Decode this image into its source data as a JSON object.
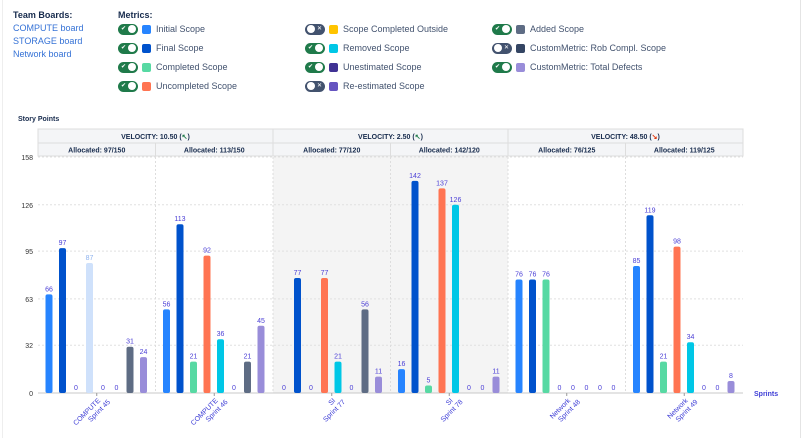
{
  "team_boards": {
    "title": "Team Boards:",
    "items": [
      "COMPUTE board",
      "STORAGE board",
      "Network board"
    ]
  },
  "metrics": {
    "title": "Metrics:",
    "items": [
      {
        "label": "Initial Scope",
        "on": true,
        "color": "#2684ff"
      },
      {
        "label": "Scope Completed Outside",
        "on": false,
        "color": "#ffc400"
      },
      {
        "label": "Added Scope",
        "on": true,
        "color": "#5e6c84"
      },
      {
        "label": "Final Scope",
        "on": true,
        "color": "#0052cc"
      },
      {
        "label": "Removed Scope",
        "on": true,
        "color": "#00c7e6"
      },
      {
        "label": "CustomMetric: Rob Compl. Scope",
        "on": false,
        "color": "#344563"
      },
      {
        "label": "Completed Scope",
        "on": true,
        "color": "#57d9a3"
      },
      {
        "label": "Unestimated Scope",
        "on": true,
        "color": "#403294"
      },
      {
        "label": "CustomMetric: Total Defects",
        "on": true,
        "color": "#998dd9"
      },
      {
        "label": "Uncompleted Scope",
        "on": true,
        "color": "#ff7452"
      },
      {
        "label": "Re-estimated Scope",
        "on": false,
        "color": "#6554c0"
      }
    ]
  },
  "chart_data": {
    "type": "bar",
    "ylabel": "Story Points",
    "xlabel": "Sprints",
    "ylim": [
      0,
      158
    ],
    "yticks": [
      0,
      32,
      63,
      95,
      126,
      158
    ],
    "grid": true,
    "velocity_groups": [
      {
        "label": "VELOCITY: 10.50",
        "trend": "up",
        "trend_glyph": "↖",
        "trend_color": "#1f7a4a",
        "shaded": false
      },
      {
        "label": "VELOCITY: 2.50",
        "trend": "up",
        "trend_glyph": "↖",
        "trend_color": "#1f7a4a",
        "shaded": true
      },
      {
        "label": "VELOCITY: 48.50",
        "trend": "down",
        "trend_glyph": "↘",
        "trend_color": "#de350b",
        "shaded": false
      }
    ],
    "categories": [
      "COMPUTE Sprint 45",
      "COMPUTE Sprint 46",
      "SI Sprint 77",
      "SI Sprint 78",
      "Network Sprint 48",
      "Network Sprint 49"
    ],
    "allocated": [
      "Allocated: 97/150",
      "Allocated: 113/150",
      "Allocated: 77/120",
      "Allocated: 142/120",
      "Allocated: 76/125",
      "Allocated: 119/125"
    ],
    "series": [
      {
        "name": "Initial Scope",
        "color": "#2684ff",
        "values": [
          66,
          56,
          0,
          16,
          76,
          85
        ]
      },
      {
        "name": "Final Scope",
        "color": "#0052cc",
        "values": [
          97,
          113,
          77,
          142,
          76,
          119
        ]
      },
      {
        "name": "Completed Scope",
        "color": "#57d9a3",
        "values": [
          0,
          21,
          0,
          5,
          76,
          21
        ]
      },
      {
        "name": "Uncompleted Scope",
        "color": "#ff7452",
        "values": [
          87,
          92,
          77,
          137,
          0,
          98
        ]
      },
      {
        "name": "Removed Scope",
        "color": "#00c7e6",
        "values": [
          0,
          36,
          21,
          126,
          0,
          34
        ]
      },
      {
        "name": "Unestimated Scope",
        "color": "#403294",
        "values": [
          0,
          0,
          0,
          0,
          0,
          0
        ]
      },
      {
        "name": "Added Scope",
        "color": "#5e6c84",
        "values": [
          31,
          21,
          56,
          0,
          0,
          0
        ]
      },
      {
        "name": "CustomMetric: Total Defects",
        "color": "#998dd9",
        "values": [
          24,
          45,
          11,
          11,
          0,
          8
        ]
      }
    ],
    "highlight": {
      "category": "COMPUTE Sprint 45",
      "series": "Uncompleted Scope",
      "color": "#cfe1fb"
    },
    "label_color": "#4b3fd6"
  }
}
